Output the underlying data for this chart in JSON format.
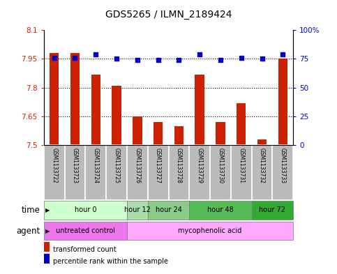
{
  "title": "GDS5265 / ILMN_2189424",
  "samples": [
    "GSM1133722",
    "GSM1133723",
    "GSM1133724",
    "GSM1133725",
    "GSM1133726",
    "GSM1133727",
    "GSM1133728",
    "GSM1133729",
    "GSM1133730",
    "GSM1133731",
    "GSM1133732",
    "GSM1133733"
  ],
  "transformed_counts": [
    7.98,
    7.98,
    7.87,
    7.81,
    7.65,
    7.62,
    7.6,
    7.87,
    7.62,
    7.72,
    7.53,
    7.95
  ],
  "percentile_ranks": [
    76,
    76,
    79,
    75,
    74,
    74,
    74,
    79,
    74,
    76,
    75,
    79
  ],
  "ylim_left": [
    7.5,
    8.1
  ],
  "ylim_right": [
    0,
    100
  ],
  "yticks_left": [
    7.5,
    7.65,
    7.8,
    7.95,
    8.1
  ],
  "yticks_right": [
    0,
    25,
    50,
    75,
    100
  ],
  "ytick_labels_left": [
    "7.5",
    "7.65",
    "7.8",
    "7.95",
    "8.1"
  ],
  "ytick_labels_right": [
    "0",
    "25",
    "50",
    "75",
    "100%"
  ],
  "bar_color": "#cc2200",
  "dot_color": "#0000cc",
  "time_groups": [
    {
      "label": "hour 0",
      "start": 0,
      "end": 3,
      "color": "#ccffcc"
    },
    {
      "label": "hour 12",
      "start": 4,
      "end": 4,
      "color": "#aaddaa"
    },
    {
      "label": "hour 24",
      "start": 5,
      "end": 6,
      "color": "#88cc88"
    },
    {
      "label": "hour 48",
      "start": 7,
      "end": 9,
      "color": "#55bb55"
    },
    {
      "label": "hour 72",
      "start": 10,
      "end": 11,
      "color": "#33aa33"
    }
  ],
  "agent_groups": [
    {
      "label": "untreated control",
      "start": 0,
      "end": 3,
      "color": "#ee77ee"
    },
    {
      "label": "mycophenolic acid",
      "start": 4,
      "end": 11,
      "color": "#ffaaff"
    }
  ],
  "sample_bg_color": "#bbbbbb",
  "legend_items": [
    {
      "color": "#cc2200",
      "label": "transformed count"
    },
    {
      "color": "#0000cc",
      "label": "percentile rank within the sample"
    }
  ]
}
